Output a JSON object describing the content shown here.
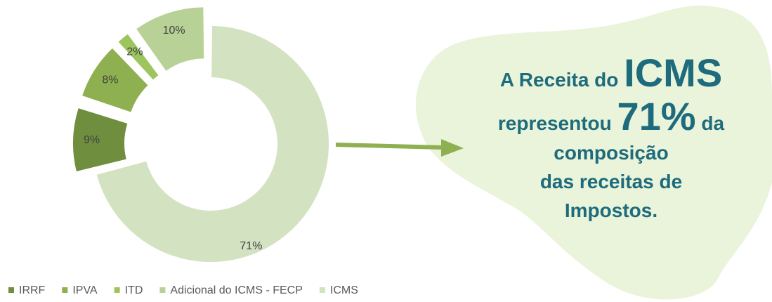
{
  "chart_data": {
    "type": "donut",
    "categories": [
      "IRRF",
      "IPVA",
      "ITD",
      "Adicional do ICMS - FECP",
      "ICMS"
    ],
    "values": [
      9,
      8,
      2,
      10,
      71
    ],
    "value_labels": [
      "9%",
      "8%",
      "2%",
      "10%",
      "71%"
    ],
    "colors": [
      "#6f8f3f",
      "#8fb050",
      "#9dc55e",
      "#b8d196",
      "#d3e2c1"
    ],
    "legend": "bottom-left",
    "annotation": [
      "A Receita do",
      "ICMS",
      "representou",
      "71%",
      "da",
      "composição",
      "das receitas de",
      "Impostos."
    ]
  }
}
